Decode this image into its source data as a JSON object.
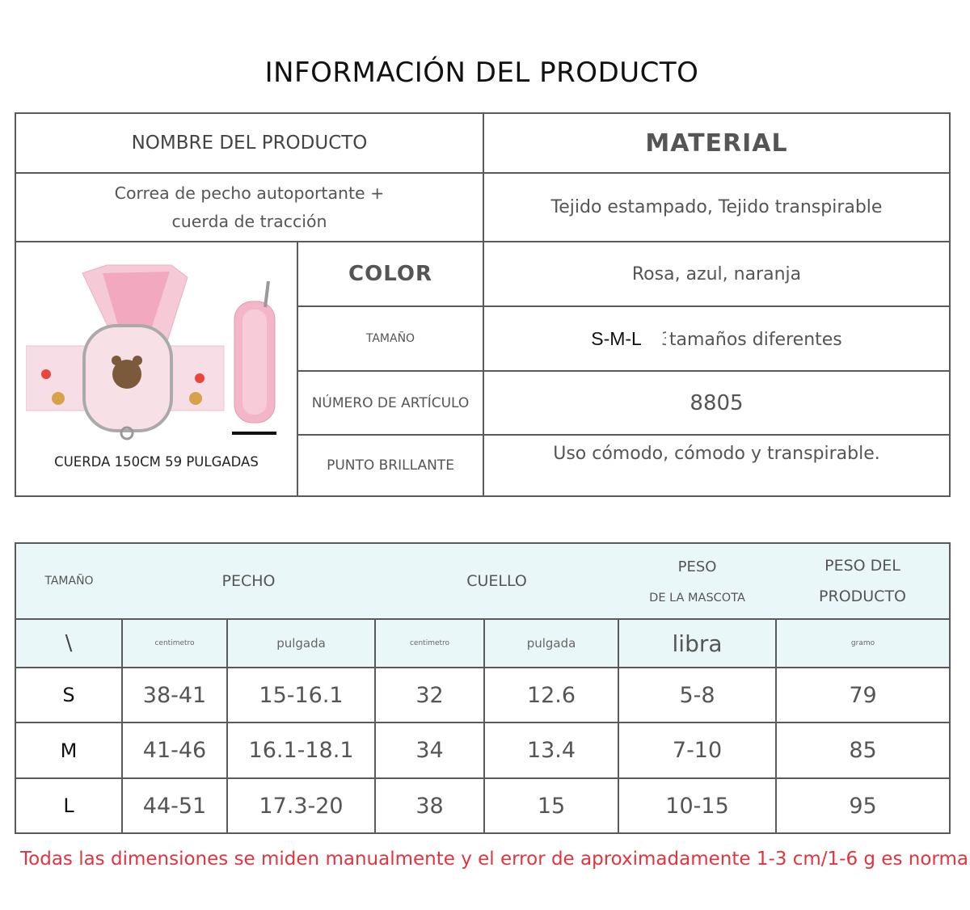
{
  "title": "INFORMACIÓN DEL PRODUCTO",
  "info_table": {
    "product_name_label": "NOMBRE DEL PRODUCTO",
    "material_label": "MATERIAL",
    "product_name": "Correa de pecho autoportante + cuerda de tracción",
    "material": "Tejido estampado, Tejido transpirable",
    "image_caption": "CUERDA 150CM 59 PULGADAS",
    "color_label": "COLOR",
    "color": "Rosa, azul, naranja",
    "size_label": "TAMAÑO",
    "size_value": "S-M-L",
    "size_suffix_digit": "3",
    "size_suffix": "tamaños diferentes",
    "item_number_label": "NÚMERO DE ARTÍCULO",
    "item_number": "8805",
    "highlight_label": "PUNTO BRILLANTE",
    "highlight": "Uso cómodo, cómodo y transpirable."
  },
  "size_table": {
    "headers": {
      "size": "TAMAÑO",
      "chest": "PECHO",
      "neck": "CUELLO",
      "pet_weight_1": "PESO",
      "pet_weight_2": "DE LA MASCOTA",
      "product_weight_1": "PESO DEL",
      "product_weight_2": "PRODUCTO"
    },
    "units": [
      "\\",
      "centimetro",
      "pulgada",
      "centimetro",
      "pulgada",
      "libra",
      "gramo"
    ],
    "rows": [
      [
        "S",
        "38-41",
        "15-16.1",
        "32",
        "12.6",
        "5-8",
        "79"
      ],
      [
        "M",
        "41-46",
        "16.1-18.1",
        "34",
        "13.4",
        "7-10",
        "85"
      ],
      [
        "L",
        "44-51",
        "17.3-20",
        "38",
        "15",
        "10-15",
        "95"
      ]
    ],
    "header_bg": "#eaf7f8"
  },
  "footnote": "Todas las dimensiones se miden manualmente y el error de aproximadamente 1-3 cm/1-6 g es normal.",
  "footnote_color": "#e0353f"
}
